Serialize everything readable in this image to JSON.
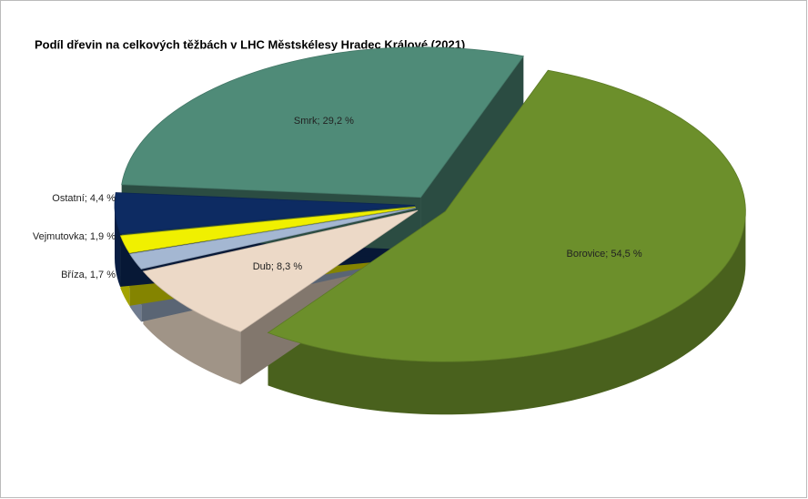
{
  "chart_data": {
    "type": "pie3d",
    "title": "Podíl dřevin na celkových těžbách v LHC Městskélesy Hradec Králové (2021)",
    "values": [
      54.5,
      8.3,
      1.7,
      1.9,
      4.4,
      29.2
    ],
    "value_labels": [
      "Borovice; 54,5  %",
      "Dub; 8,3 %",
      "Bříza, 1,7 %",
      "Vejmutovka; 1,9 %",
      "Ostatní; 4,4 %",
      "Smrk; 29,2 %"
    ],
    "colors": [
      "#6c8f2b",
      "#ecd9c7",
      "#a4b7d2",
      "#f0f000",
      "#0d2b62",
      "#4f8b78"
    ]
  }
}
